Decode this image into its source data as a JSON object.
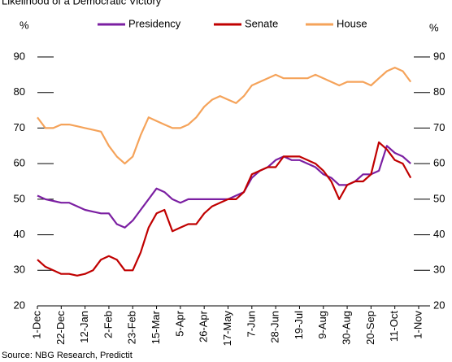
{
  "chart_data": {
    "type": "line",
    "title": "Likelihood of a Democratic Victory",
    "y_label": "%",
    "y2_label": "%",
    "source": "Source: NBG Research, Predictit",
    "categories": [
      "1-Dec",
      null,
      null,
      "22-Dec",
      null,
      null,
      "12-Jan",
      null,
      null,
      "2-Feb",
      null,
      null,
      "23-Feb",
      null,
      null,
      "15-Mar",
      null,
      null,
      "5-Apr",
      null,
      null,
      "26-Apr",
      null,
      null,
      "17-May",
      null,
      null,
      "7-Jun",
      null,
      null,
      "28-Jun",
      null,
      null,
      "19-Jul",
      null,
      null,
      "9-Aug",
      null,
      null,
      "30-Aug",
      null,
      null,
      "20-Sep",
      null,
      null,
      "11-Oct",
      null,
      null,
      "1-Nov"
    ],
    "series": [
      {
        "name": "Presidency",
        "color": "#7b1fa2",
        "values": [
          51,
          50,
          49.5,
          49,
          49,
          48,
          47,
          46.5,
          46,
          46,
          43,
          42,
          44,
          47,
          50,
          53,
          52,
          50,
          49,
          50,
          50,
          50,
          50,
          50,
          50,
          51,
          52,
          56,
          58,
          59,
          61,
          62,
          61,
          61,
          60,
          59,
          57,
          56,
          54,
          54,
          55,
          57,
          57,
          58,
          65,
          63,
          62,
          60,
          null
        ]
      },
      {
        "name": "Senate",
        "color": "#c00000",
        "values": [
          33,
          31,
          30,
          29,
          29,
          28.5,
          29,
          30,
          33,
          34,
          33,
          30,
          30,
          35,
          42,
          46,
          47,
          41,
          42,
          43,
          43,
          46,
          48,
          49,
          50,
          50,
          52,
          57,
          58,
          59,
          59,
          62,
          62,
          62,
          61,
          60,
          58,
          55,
          50,
          54,
          55,
          55,
          57,
          66,
          64,
          61,
          60,
          56,
          null
        ]
      },
      {
        "name": "House",
        "color": "#f5a35a",
        "values": [
          73,
          70,
          70,
          71,
          71,
          70.5,
          70,
          69.5,
          69,
          65,
          62,
          60,
          62,
          68,
          73,
          72,
          71,
          70,
          70,
          71,
          73,
          76,
          78,
          79,
          78,
          77,
          79,
          82,
          83,
          84,
          85,
          84,
          84,
          84,
          84,
          85,
          84,
          83,
          82,
          83,
          83,
          83,
          82,
          84,
          86,
          87,
          86,
          83,
          null
        ]
      }
    ],
    "ylim": [
      20,
      90
    ],
    "yticks": [
      20,
      30,
      40,
      50,
      60,
      70,
      80,
      90
    ],
    "y2lim": [
      20,
      90
    ],
    "y2ticks": [
      20,
      30,
      40,
      50,
      60,
      70,
      80,
      90
    ],
    "legend": "top"
  }
}
